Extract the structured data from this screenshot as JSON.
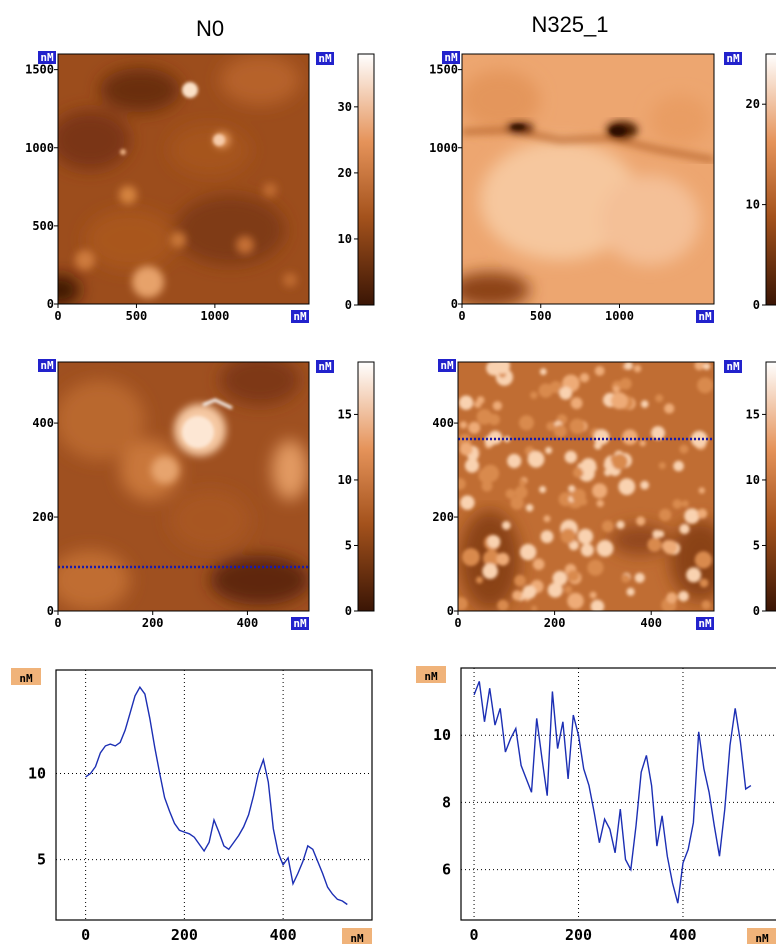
{
  "titles": {
    "left": "N0",
    "right": "N325_1"
  },
  "unit_label": "nM",
  "colors": {
    "afm_dark": "#3a1505",
    "afm_mid": "#b05a22",
    "afm_light": "#ffffff",
    "profile_line": "#1c2fb4",
    "scan_line": "#1a1aaa",
    "unit_badge_blue": "#2222cc",
    "unit_badge_orange": "#f0b37a"
  },
  "chart_data": [
    {
      "id": "n0-topography-large",
      "type": "heatmap",
      "title": "N0",
      "x_ticks": [
        "0",
        "500",
        "1000"
      ],
      "y_ticks": [
        "0",
        "500",
        "1000",
        "1500"
      ],
      "xlim": [
        0,
        1600
      ],
      "ylim": [
        0,
        1600
      ],
      "colorbar": {
        "ticks": [
          "0",
          "10",
          "20",
          "30"
        ],
        "range": [
          0,
          38
        ]
      }
    },
    {
      "id": "n325-topography-large",
      "type": "heatmap",
      "title": "N325_1",
      "x_ticks": [
        "0",
        "500",
        "1000"
      ],
      "y_ticks": [
        "0",
        "1000",
        "1500"
      ],
      "xlim": [
        0,
        1600
      ],
      "ylim": [
        0,
        1600
      ],
      "colorbar": {
        "ticks": [
          "0",
          "10",
          "20"
        ],
        "range": [
          0,
          25
        ]
      }
    },
    {
      "id": "n0-topography-zoom",
      "type": "heatmap",
      "x_ticks": [
        "0",
        "200",
        "400"
      ],
      "y_ticks": [
        "0",
        "200",
        "400"
      ],
      "xlim": [
        0,
        530
      ],
      "ylim": [
        0,
        530
      ],
      "scan_line_y": 100,
      "colorbar": {
        "ticks": [
          "0",
          "5",
          "10",
          "15"
        ],
        "range": [
          0,
          19
        ]
      }
    },
    {
      "id": "n325-topography-zoom",
      "type": "heatmap",
      "x_ticks": [
        "0",
        "200",
        "400"
      ],
      "y_ticks": [
        "0",
        "200",
        "400"
      ],
      "xlim": [
        0,
        530
      ],
      "ylim": [
        0,
        530
      ],
      "scan_line_y": 378,
      "colorbar": {
        "ticks": [
          "0",
          "5",
          "10",
          "15"
        ],
        "range": [
          0,
          19
        ]
      }
    },
    {
      "id": "n0-profile",
      "type": "line",
      "x_ticks": [
        "0",
        "200",
        "400"
      ],
      "y_ticks": [
        "5",
        "10"
      ],
      "xlim": [
        -60,
        580
      ],
      "ylim": [
        1.5,
        16
      ],
      "x": [
        0,
        10,
        20,
        30,
        40,
        50,
        60,
        70,
        80,
        90,
        100,
        110,
        120,
        130,
        140,
        150,
        160,
        170,
        180,
        190,
        200,
        210,
        220,
        230,
        240,
        250,
        260,
        270,
        280,
        290,
        300,
        310,
        320,
        330,
        340,
        350,
        360,
        370,
        380,
        390,
        400,
        410,
        420,
        430,
        440,
        450,
        460,
        470,
        480,
        490,
        500,
        510,
        520,
        530
      ],
      "y": [
        9.8,
        10.0,
        10.4,
        11.2,
        11.6,
        11.7,
        11.6,
        11.8,
        12.5,
        13.5,
        14.5,
        15.0,
        14.6,
        13.2,
        11.5,
        10.0,
        8.6,
        7.8,
        7.1,
        6.7,
        6.6,
        6.5,
        6.3,
        5.9,
        5.5,
        6.0,
        7.3,
        6.6,
        5.8,
        5.6,
        6.0,
        6.4,
        6.9,
        7.6,
        8.7,
        10.0,
        10.8,
        9.5,
        6.8,
        5.4,
        4.7,
        5.1,
        3.6,
        4.2,
        4.9,
        5.8,
        5.6,
        4.9,
        4.2,
        3.4,
        3.0,
        2.7,
        2.6,
        2.4
      ]
    },
    {
      "id": "n325-profile",
      "type": "line",
      "x_ticks": [
        "0",
        "200",
        "400"
      ],
      "y_ticks": [
        "6",
        "8",
        "10"
      ],
      "xlim": [
        -25,
        580
      ],
      "ylim": [
        4.5,
        12.0
      ],
      "x": [
        0,
        10,
        20,
        30,
        40,
        50,
        60,
        70,
        80,
        90,
        100,
        110,
        120,
        130,
        140,
        150,
        160,
        170,
        180,
        190,
        200,
        210,
        220,
        230,
        240,
        250,
        260,
        270,
        280,
        290,
        300,
        310,
        320,
        330,
        340,
        350,
        360,
        370,
        380,
        390,
        400,
        410,
        420,
        430,
        440,
        450,
        460,
        470,
        480,
        490,
        500,
        510,
        520,
        530
      ],
      "y": [
        11.2,
        11.6,
        10.4,
        11.4,
        10.3,
        10.8,
        9.5,
        9.9,
        10.2,
        9.1,
        8.7,
        8.3,
        10.5,
        9.3,
        8.2,
        11.3,
        9.6,
        10.4,
        8.7,
        10.6,
        10.0,
        9.0,
        8.5,
        7.7,
        6.8,
        7.5,
        7.2,
        6.5,
        7.8,
        6.3,
        6.0,
        7.3,
        8.9,
        9.4,
        8.5,
        6.7,
        7.6,
        6.4,
        5.6,
        5.0,
        6.2,
        6.6,
        7.4,
        10.1,
        9.0,
        8.3,
        7.3,
        6.4,
        7.8,
        9.7,
        10.8,
        9.8,
        8.4,
        8.5
      ]
    }
  ]
}
